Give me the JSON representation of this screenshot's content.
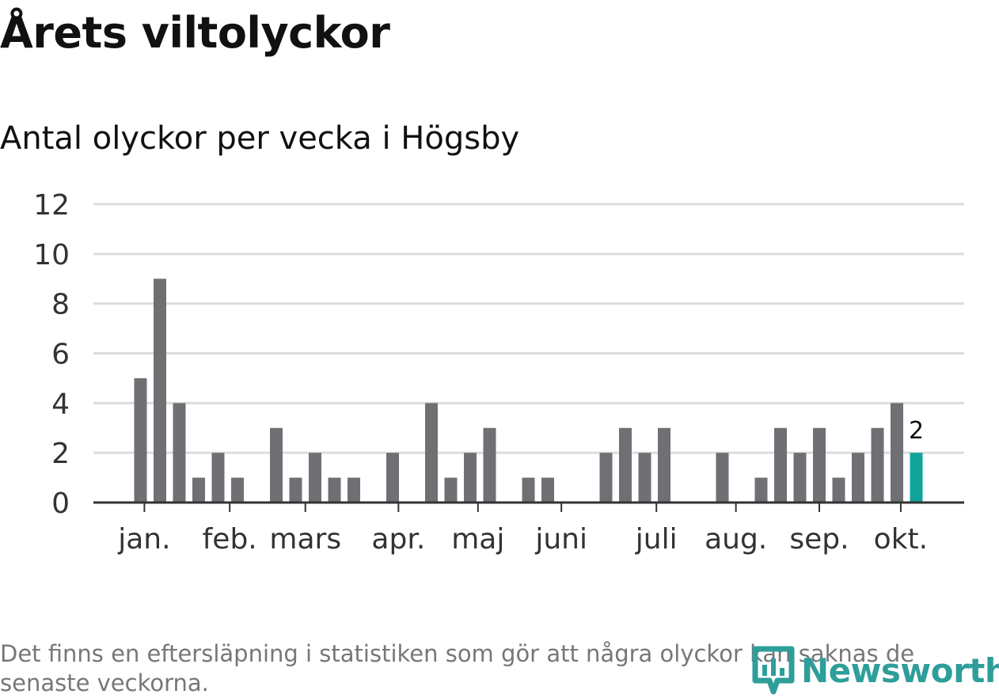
{
  "title": "Årets viltolyckor",
  "subtitle": "Antal olyckor per vecka i Högsby",
  "footnote": "Det finns en eftersläpning i statistiken som gör att några olyckor kan saknas de senaste veckorna.",
  "brand": {
    "name": "Newsworthy",
    "color": "#2e9e9a",
    "icon": "newsworthy-logo-icon"
  },
  "colors": {
    "bar": "#706f74",
    "highlight": "#10a49a",
    "grid": "#dcdcdc",
    "axis": "#333333",
    "text": "#333333"
  },
  "chart_data": {
    "type": "bar",
    "title": "Antal olyckor per vecka i Högsby",
    "xlabel": "",
    "ylabel": "",
    "ylim": [
      0,
      12
    ],
    "yticks": [
      0,
      2,
      4,
      6,
      8,
      10,
      12
    ],
    "grid": true,
    "x_start_week": 1,
    "values": [
      5,
      9,
      4,
      1,
      2,
      1,
      0,
      3,
      1,
      2,
      1,
      1,
      0,
      2,
      0,
      4,
      1,
      2,
      3,
      0,
      1,
      1,
      0,
      0,
      2,
      3,
      2,
      3,
      0,
      0,
      2,
      0,
      1,
      3,
      2,
      3,
      1,
      2,
      3,
      4,
      2
    ],
    "highlight_index": 40,
    "highlight_label": "2",
    "month_ticks": [
      {
        "label": "jan.",
        "position": 0.2
      },
      {
        "label": "feb.",
        "position": 4.6
      },
      {
        "label": "mars",
        "position": 8.5
      },
      {
        "label": "apr.",
        "position": 13.3
      },
      {
        "label": "maj",
        "position": 17.4
      },
      {
        "label": "juni",
        "position": 21.7
      },
      {
        "label": "juli",
        "position": 26.6
      },
      {
        "label": "aug.",
        "position": 30.7
      },
      {
        "label": "sep.",
        "position": 35.0
      },
      {
        "label": "okt.",
        "position": 39.2
      }
    ]
  }
}
